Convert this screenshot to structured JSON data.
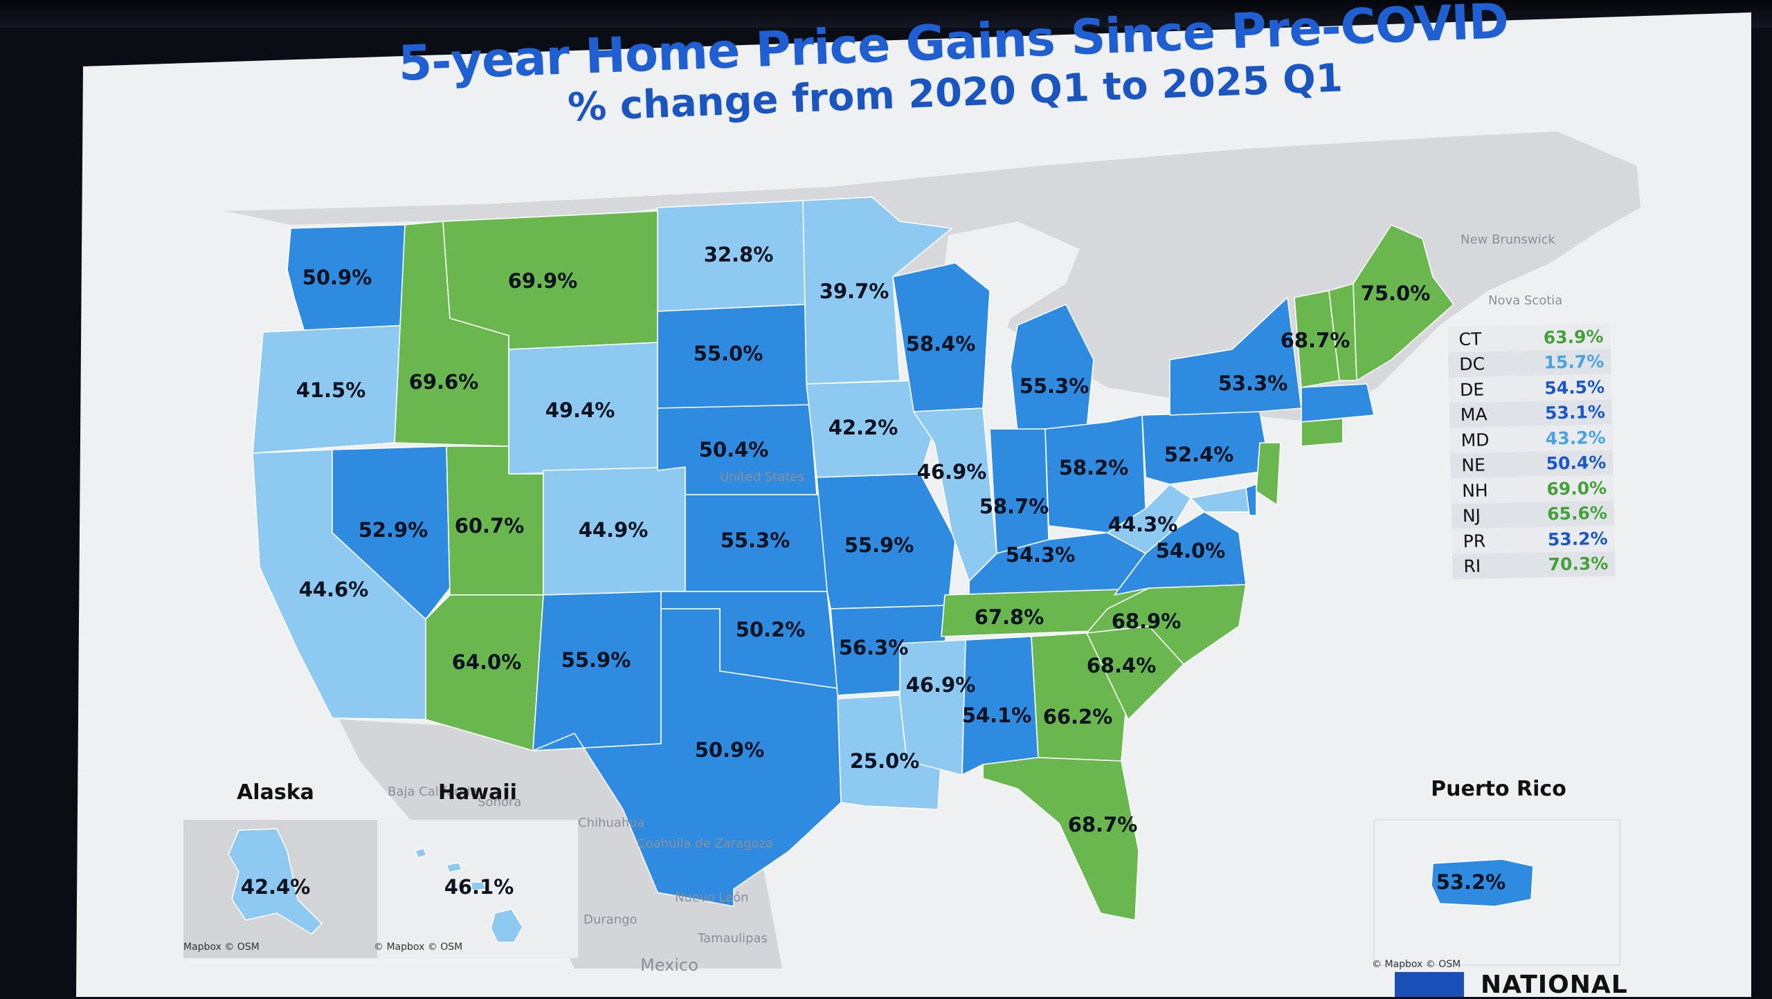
{
  "title": "5-year Home Price Gains Since Pre-COVID",
  "subtitle": "% change from 2020 Q1 to 2025 Q1",
  "colors": {
    "light": "#8ec9f2",
    "mid": "#2f8be0",
    "green": "#6ab74f",
    "land": "#d5d7da",
    "water": "#eef0f2",
    "label_green": "#46a03a",
    "label_light": "#4aa2e0",
    "label_blue": "#1a56c4"
  },
  "states": [
    {
      "id": "WA",
      "value": "50.9%",
      "cat": "mid"
    },
    {
      "id": "OR",
      "value": "41.5%",
      "cat": "light"
    },
    {
      "id": "CA",
      "value": "44.6%",
      "cat": "light"
    },
    {
      "id": "NV",
      "value": "52.9%",
      "cat": "mid"
    },
    {
      "id": "ID",
      "value": "69.6%",
      "cat": "green"
    },
    {
      "id": "MT",
      "value": "69.9%",
      "cat": "green"
    },
    {
      "id": "WY",
      "value": "49.4%",
      "cat": "light"
    },
    {
      "id": "UT",
      "value": "60.7%",
      "cat": "green"
    },
    {
      "id": "AZ",
      "value": "64.0%",
      "cat": "green"
    },
    {
      "id": "CO",
      "value": "44.9%",
      "cat": "light"
    },
    {
      "id": "NM",
      "value": "55.9%",
      "cat": "mid"
    },
    {
      "id": "ND",
      "value": "32.8%",
      "cat": "light"
    },
    {
      "id": "SD",
      "value": "55.0%",
      "cat": "mid"
    },
    {
      "id": "NE",
      "value": "50.4%",
      "cat": "mid"
    },
    {
      "id": "KS",
      "value": "55.3%",
      "cat": "mid"
    },
    {
      "id": "OK",
      "value": "50.2%",
      "cat": "mid"
    },
    {
      "id": "TX",
      "value": "50.9%",
      "cat": "mid"
    },
    {
      "id": "MN",
      "value": "39.7%",
      "cat": "light"
    },
    {
      "id": "IA",
      "value": "42.2%",
      "cat": "light"
    },
    {
      "id": "MO",
      "value": "55.9%",
      "cat": "mid"
    },
    {
      "id": "AR",
      "value": "56.3%",
      "cat": "mid"
    },
    {
      "id": "LA",
      "value": "25.0%",
      "cat": "light"
    },
    {
      "id": "WI",
      "value": "58.4%",
      "cat": "mid"
    },
    {
      "id": "IL",
      "value": "46.9%",
      "cat": "light"
    },
    {
      "id": "MI",
      "value": "55.3%",
      "cat": "mid"
    },
    {
      "id": "IN",
      "value": "58.7%",
      "cat": "mid"
    },
    {
      "id": "OH",
      "value": "58.2%",
      "cat": "mid"
    },
    {
      "id": "KY",
      "value": "54.3%",
      "cat": "mid"
    },
    {
      "id": "TN",
      "value": "67.8%",
      "cat": "green"
    },
    {
      "id": "MS",
      "value": "46.9%",
      "cat": "light"
    },
    {
      "id": "AL",
      "value": "54.1%",
      "cat": "mid"
    },
    {
      "id": "GA",
      "value": "66.2%",
      "cat": "green"
    },
    {
      "id": "FL",
      "value": "68.7%",
      "cat": "green"
    },
    {
      "id": "SC",
      "value": "68.4%",
      "cat": "green"
    },
    {
      "id": "NC",
      "value": "68.9%",
      "cat": "green"
    },
    {
      "id": "VA",
      "value": "54.0%",
      "cat": "mid"
    },
    {
      "id": "WV",
      "value": "44.3%",
      "cat": "light"
    },
    {
      "id": "PA",
      "value": "52.4%",
      "cat": "mid"
    },
    {
      "id": "NY",
      "value": "53.3%",
      "cat": "mid"
    },
    {
      "id": "VT",
      "value": "68.7%",
      "cat": "green"
    },
    {
      "id": "ME",
      "value": "75.0%",
      "cat": "green"
    },
    {
      "id": "AK",
      "value": "42.4%",
      "cat": "light"
    },
    {
      "id": "HI",
      "value": "46.1%",
      "cat": "light"
    },
    {
      "id": "PR",
      "value": "53.2%",
      "cat": "mid"
    }
  ],
  "small_states": [
    {
      "code": "CT",
      "value": "63.9%",
      "cat": "green"
    },
    {
      "code": "DC",
      "value": "15.7%",
      "cat": "light"
    },
    {
      "code": "DE",
      "value": "54.5%",
      "cat": "mid"
    },
    {
      "code": "MA",
      "value": "53.1%",
      "cat": "mid"
    },
    {
      "code": "MD",
      "value": "43.2%",
      "cat": "light"
    },
    {
      "code": "NE",
      "value": "50.4%",
      "cat": "mid"
    },
    {
      "code": "NH",
      "value": "69.0%",
      "cat": "green"
    },
    {
      "code": "NJ",
      "value": "65.6%",
      "cat": "green"
    },
    {
      "code": "PR",
      "value": "53.2%",
      "cat": "mid"
    },
    {
      "code": "RI",
      "value": "70.3%",
      "cat": "green"
    }
  ],
  "geo_labels": {
    "new_brunswick": "New Brunswick",
    "nova_scotia": "Nova Scotia",
    "united_states": "United States",
    "baja_california": "Baja California",
    "sonora": "Sonora",
    "chihuahua": "Chihuahua",
    "coahuila": "Coahuila de Zaragoza",
    "nuevo_leon": "Nuevo León",
    "durango": "Durango",
    "tamaulipas": "Tamaulipas",
    "mexico": "Mexico"
  },
  "insets": {
    "alaska": "Alaska",
    "hawaii": "Hawaii",
    "puerto_rico": "Puerto Rico"
  },
  "credits": {
    "mapbox": "© Mapbox © OSM",
    "mapbox_short": "Mapbox © OSM"
  },
  "brand": {
    "name": "NATIONAL"
  }
}
